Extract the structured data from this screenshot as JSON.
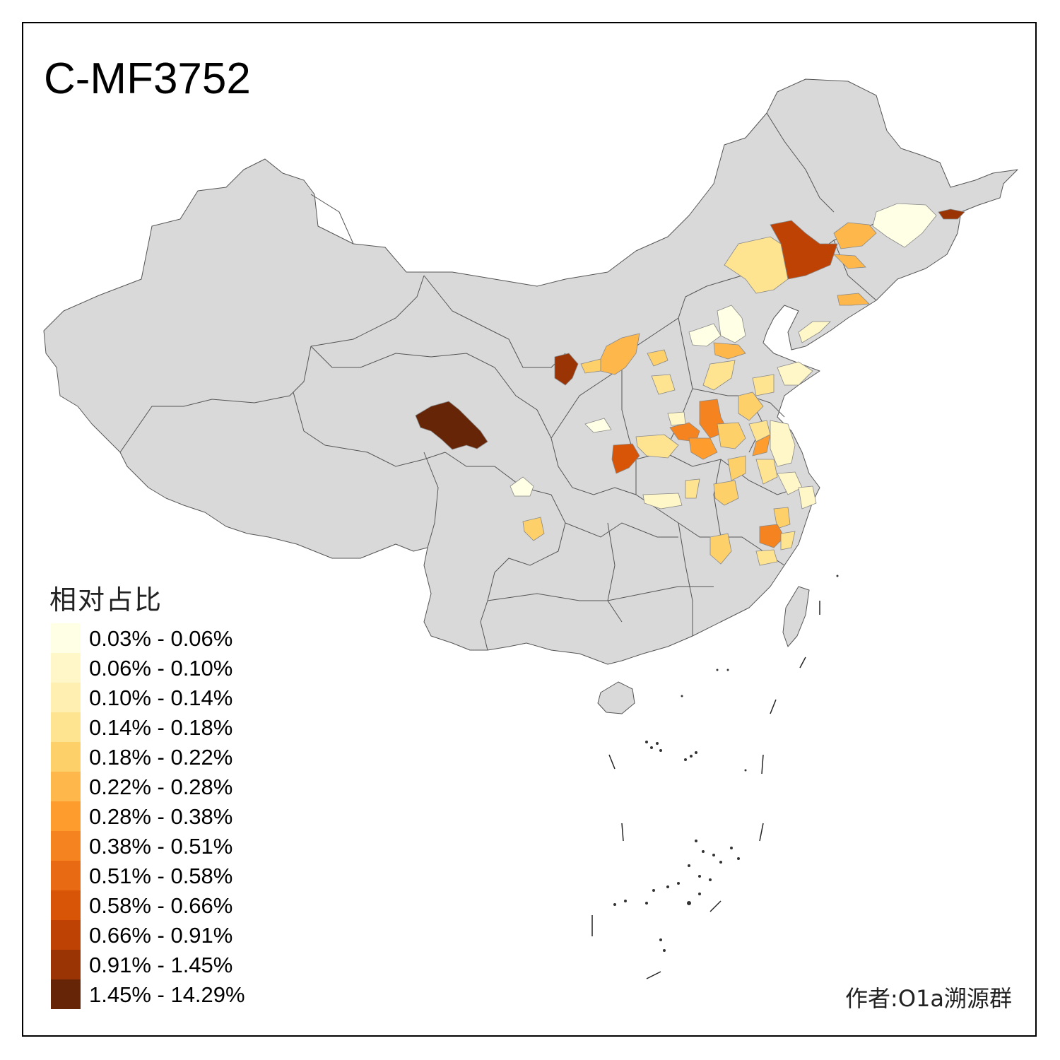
{
  "map": {
    "title": "C-MF3752",
    "credit": "作者:O1a溯源群",
    "legend": {
      "title": "相对占比",
      "items": [
        {
          "label": "0.03% - 0.06%",
          "color": "#ffffe5"
        },
        {
          "label": "0.06% - 0.10%",
          "color": "#fff7c8"
        },
        {
          "label": "0.10% - 0.14%",
          "color": "#ffefb0"
        },
        {
          "label": "0.14% - 0.18%",
          "color": "#fee391"
        },
        {
          "label": "0.18% - 0.22%",
          "color": "#fed06a"
        },
        {
          "label": "0.22% - 0.28%",
          "color": "#feb74a"
        },
        {
          "label": "0.28% - 0.38%",
          "color": "#fe9c2e"
        },
        {
          "label": "0.38% - 0.51%",
          "color": "#f5831f"
        },
        {
          "label": "0.51% - 0.58%",
          "color": "#e86a12"
        },
        {
          "label": "0.58% - 0.66%",
          "color": "#d85407"
        },
        {
          "label": "0.66% - 0.91%",
          "color": "#bf4205"
        },
        {
          "label": "0.91% - 1.45%",
          "color": "#9a3404"
        },
        {
          "label": "1.45% - 14.29%",
          "color": "#662506"
        }
      ]
    }
  }
}
